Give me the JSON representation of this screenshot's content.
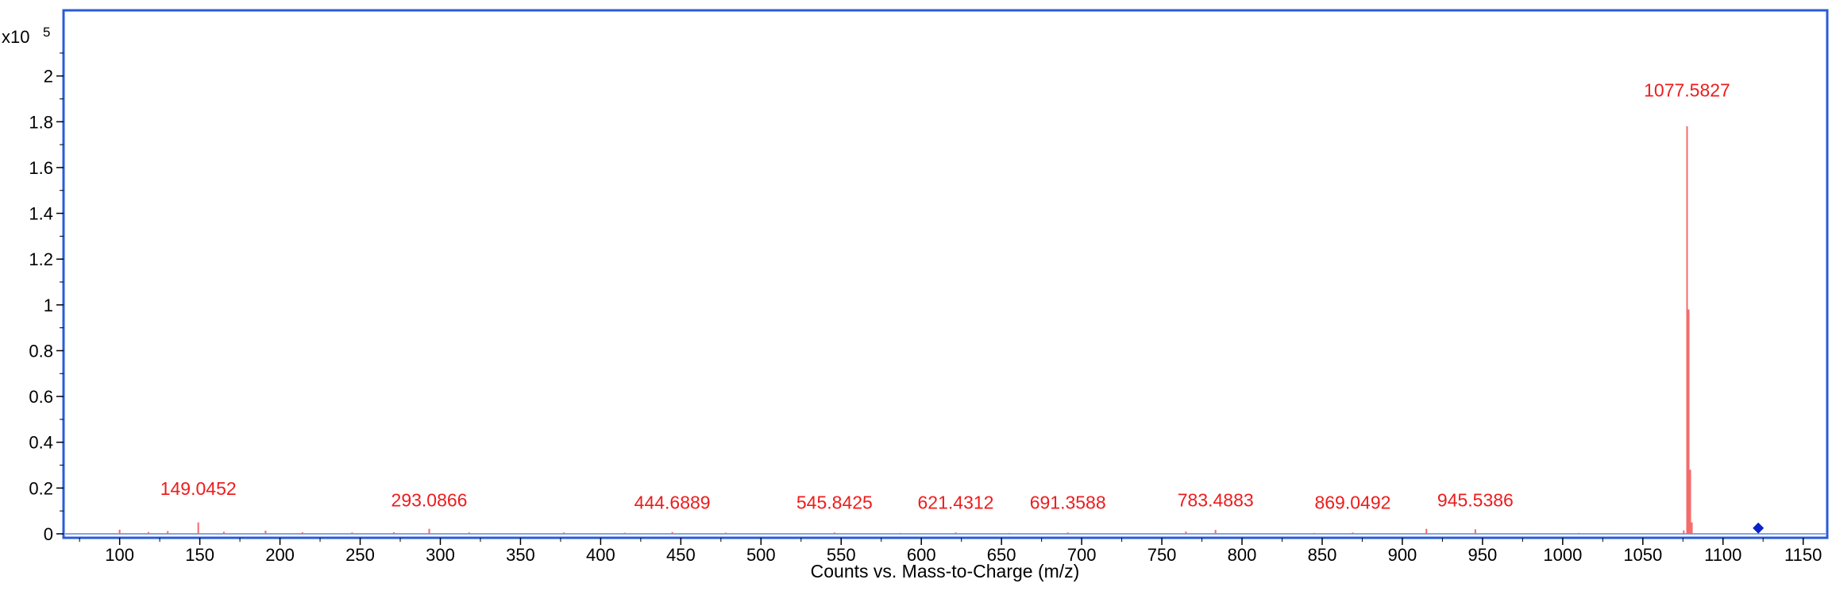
{
  "chart_data": {
    "type": "line",
    "title": "",
    "xlabel": "Counts vs. Mass-to-Charge (m/z)",
    "ylabel": "",
    "y_multiplier": "x10",
    "y_exponent": "5",
    "xlim": [
      65,
      1165
    ],
    "ylim": [
      0,
      2.2
    ],
    "x_ticks": [
      100,
      150,
      200,
      250,
      300,
      350,
      400,
      450,
      500,
      550,
      600,
      650,
      700,
      750,
      800,
      850,
      900,
      950,
      1000,
      1050,
      1100,
      1150
    ],
    "y_ticks": [
      0,
      0.2,
      0.4,
      0.6,
      0.8,
      1,
      1.2,
      1.4,
      1.6,
      1.8,
      2
    ],
    "y_tick_labels": [
      "0",
      "0.2",
      "0.4",
      "0.6",
      "0.8",
      "1",
      "1.2",
      "1.4",
      "1.6",
      "1.8",
      "2"
    ],
    "grid": false,
    "colors": {
      "frame": "#2a5bd7",
      "series": "#f26b6b",
      "labels": "#ee1c1c",
      "baseline": "#8aa2e6",
      "marker": "#0b22c9"
    },
    "peaks": [
      {
        "x": 100.0,
        "y": 0.018
      },
      {
        "x": 118.0,
        "y": 0.008
      },
      {
        "x": 130.0,
        "y": 0.012
      },
      {
        "x": 149.0452,
        "y": 0.05,
        "label": "149.0452"
      },
      {
        "x": 165.0,
        "y": 0.009
      },
      {
        "x": 191.0,
        "y": 0.014
      },
      {
        "x": 214.0,
        "y": 0.007
      },
      {
        "x": 245.0,
        "y": 0.006
      },
      {
        "x": 271.0,
        "y": 0.007
      },
      {
        "x": 293.0866,
        "y": 0.022,
        "label": "293.0866"
      },
      {
        "x": 318.0,
        "y": 0.006
      },
      {
        "x": 377.0,
        "y": 0.006
      },
      {
        "x": 415.0,
        "y": 0.005
      },
      {
        "x": 444.6889,
        "y": 0.008,
        "label": "444.6889"
      },
      {
        "x": 478.0,
        "y": 0.005
      },
      {
        "x": 545.8425,
        "y": 0.006,
        "label": "545.8425"
      },
      {
        "x": 587.0,
        "y": 0.004
      },
      {
        "x": 621.4312,
        "y": 0.006,
        "label": "621.4312"
      },
      {
        "x": 655.0,
        "y": 0.004
      },
      {
        "x": 691.3588,
        "y": 0.006,
        "label": "691.3588"
      },
      {
        "x": 765.0,
        "y": 0.01
      },
      {
        "x": 783.4883,
        "y": 0.017,
        "label": "783.4883"
      },
      {
        "x": 845.0,
        "y": 0.004
      },
      {
        "x": 869.0492,
        "y": 0.006,
        "label": "869.0492"
      },
      {
        "x": 915.0,
        "y": 0.022
      },
      {
        "x": 945.5386,
        "y": 0.02,
        "label": "945.5386"
      },
      {
        "x": 1010.0,
        "y": 0.004
      },
      {
        "x": 1075.5,
        "y": 0.015
      },
      {
        "x": 1077.5827,
        "y": 1.78,
        "label": "1077.5827"
      },
      {
        "x": 1078.58,
        "y": 0.98
      },
      {
        "x": 1079.58,
        "y": 0.28
      },
      {
        "x": 1080.58,
        "y": 0.05
      }
    ],
    "marker": {
      "x": 1122,
      "y": 0.025
    }
  }
}
